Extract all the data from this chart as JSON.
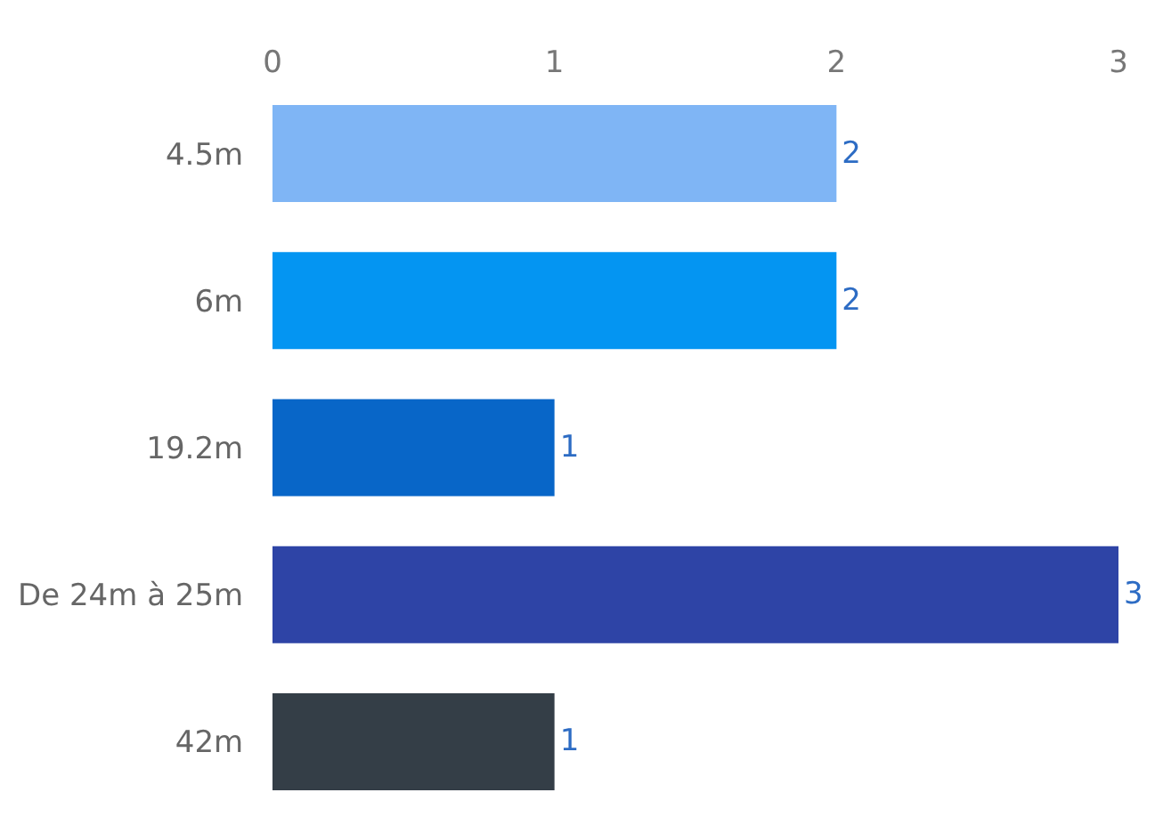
{
  "chart_data": {
    "type": "bar",
    "orientation": "horizontal",
    "categories": [
      "4.5m",
      "6m",
      "19.2m",
      "De 24m à 25m",
      "42m"
    ],
    "values": [
      2,
      2,
      1,
      3,
      1
    ],
    "colors": [
      "#7fb5f5",
      "#0495f2",
      "#0866c8",
      "#2e44a6",
      "#343e47"
    ],
    "xlim": [
      0,
      3
    ],
    "xticks": [
      0,
      1,
      2,
      3
    ],
    "data_labels": true
  }
}
